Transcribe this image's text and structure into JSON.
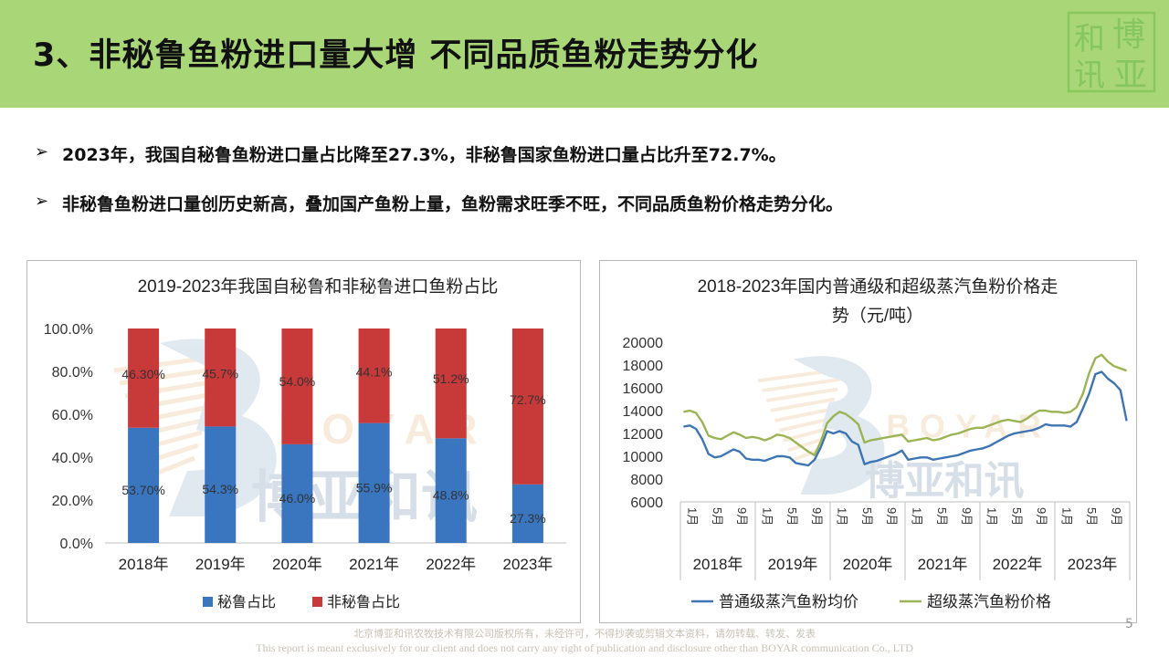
{
  "header": {
    "title": "3、非秘鲁鱼粉进口量大增 不同品质鱼粉走势分化",
    "logo_chars": [
      "和",
      "博",
      "讯",
      "亚"
    ]
  },
  "bullets": [
    {
      "text": "2023年，我国自秘鲁鱼粉进口量占比降至27.3%，非秘鲁国家鱼粉进口量占比升至72.7%。"
    },
    {
      "text": "非秘鲁鱼粉进口量创历史新高，叠加国产鱼粉上量，鱼粉需求旺季不旺，不同品质鱼粉价格走势分化。"
    }
  ],
  "watermark": {
    "latin": "BOYAR",
    "cn": "博亚和讯"
  },
  "chart_data": [
    {
      "type": "bar",
      "stacked": true,
      "title": "2019-2023年我国自秘鲁和非秘鲁进口鱼粉占比",
      "categories": [
        "2018年",
        "2019年",
        "2020年",
        "2021年",
        "2022年",
        "2023年"
      ],
      "series": [
        {
          "name": "秘鲁占比",
          "color": "#3a75bf",
          "values": [
            53.7,
            54.3,
            46.0,
            55.9,
            48.8,
            27.3
          ],
          "labels": [
            "53.70%",
            "54.3%",
            "46.0%",
            "55.9%",
            "48.8%",
            "27.3%"
          ]
        },
        {
          "name": "非秘鲁占比",
          "color": "#c8393a",
          "values": [
            46.3,
            45.7,
            54.0,
            44.1,
            51.2,
            72.7
          ],
          "labels": [
            "46.30%",
            "45.7%",
            "54.0%",
            "44.1%",
            "51.2%",
            "72.7%"
          ]
        }
      ],
      "ylim": [
        0,
        100
      ],
      "yticks": [
        "0.0%",
        "20.0%",
        "40.0%",
        "60.0%",
        "80.0%",
        "100.0%"
      ],
      "grid": false,
      "legend": "bottom"
    },
    {
      "type": "line",
      "title": "2018-2023年国内普通级和超级蒸汽鱼粉价格走势（元/吨）",
      "title_lines": [
        "2018-2023年国内普通级和超级蒸汽鱼粉价格走",
        "势（元/吨）"
      ],
      "ylim": [
        6000,
        20000
      ],
      "yticks": [
        "6000",
        "8000",
        "10000",
        "12000",
        "14000",
        "16000",
        "18000",
        "20000"
      ],
      "month_ticks": [
        "1月",
        "5月",
        "9月"
      ],
      "years": [
        "2018年",
        "2019年",
        "2020年",
        "2021年",
        "2022年",
        "2023年"
      ],
      "series": [
        {
          "name": "普通级蒸汽鱼粉均价",
          "color": "#3c74b4",
          "values": [
            12600,
            12700,
            12400,
            11500,
            10200,
            9900,
            10000,
            10300,
            10600,
            10400,
            9800,
            9700,
            9700,
            9600,
            9800,
            10000,
            10000,
            9900,
            9400,
            9300,
            9200,
            9700,
            10800,
            12200,
            12000,
            12200,
            12000,
            11300,
            11000,
            9300,
            9500,
            9600,
            9800,
            10000,
            10200,
            10500,
            9700,
            9800,
            9900,
            9900,
            9700,
            9800,
            9900,
            10000,
            10100,
            10300,
            10500,
            10600,
            10700,
            10900,
            11200,
            11500,
            11800,
            12000,
            12100,
            12200,
            12300,
            12500,
            12800,
            12700,
            12700,
            12700,
            12600,
            13000,
            14200,
            15500,
            17200,
            17400,
            16800,
            16400,
            15800,
            13100
          ]
        },
        {
          "name": "超级蒸汽鱼粉价格",
          "color": "#9bb453",
          "values": [
            13900,
            14000,
            13800,
            13000,
            11800,
            11600,
            11500,
            11800,
            12100,
            11900,
            11600,
            11700,
            11600,
            11400,
            11600,
            11900,
            11800,
            11600,
            11200,
            10800,
            10400,
            10100,
            11300,
            12900,
            13500,
            13900,
            13700,
            13300,
            12800,
            11200,
            11400,
            11500,
            11600,
            11700,
            11800,
            11900,
            11300,
            11400,
            11500,
            11600,
            11400,
            11500,
            11700,
            11900,
            12000,
            12200,
            12400,
            12500,
            12500,
            12700,
            12900,
            13100,
            13200,
            13100,
            13000,
            13300,
            13700,
            14000,
            14000,
            13900,
            13900,
            13800,
            13900,
            14300,
            15500,
            17300,
            18600,
            18900,
            18300,
            17900,
            17700,
            17500
          ]
        }
      ],
      "grid": false,
      "legend": "bottom"
    }
  ],
  "footer": {
    "cn": "北京博亚和讯农牧技术有限公司版权所有，未经许可，不得抄袭或剪辑文本资料，请勿转载、转发、发表",
    "en": "This report is meant exclusively for our client and does not carry any right of publication and disclosure other than BOYAR communication Co., LTD",
    "page": "5"
  }
}
